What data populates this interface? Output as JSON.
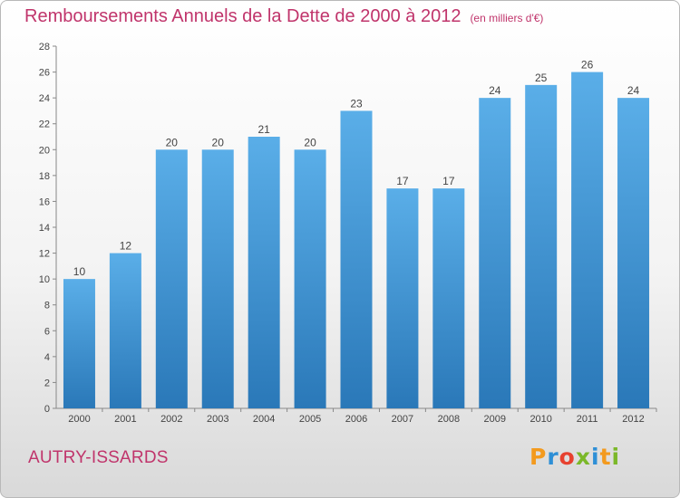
{
  "header": {
    "title": "Remboursements Annuels de la Dette de 2000 à 2012",
    "unit": "(en milliers d'€)"
  },
  "footer": {
    "commune": "AUTRY-ISSARDS",
    "logo_letters": [
      "P",
      "r",
      "o",
      "x",
      "i",
      "t",
      "i"
    ]
  },
  "colors": {
    "title": "#c0346b",
    "bar_top": "#5aaee8",
    "bar_bottom": "#2a78b8"
  },
  "chart_data": {
    "type": "bar",
    "title": "Remboursements Annuels de la Dette de 2000 à 2012",
    "ylabel": "",
    "xlabel": "",
    "categories": [
      "2000",
      "2001",
      "2002",
      "2003",
      "2004",
      "2005",
      "2006",
      "2007",
      "2008",
      "2009",
      "2010",
      "2011",
      "2012"
    ],
    "values": [
      10,
      12,
      20,
      20,
      21,
      20,
      23,
      17,
      17,
      24,
      25,
      26,
      24
    ],
    "ylim": [
      0,
      28
    ],
    "yticks": [
      0,
      2,
      4,
      6,
      8,
      10,
      12,
      14,
      16,
      18,
      20,
      22,
      24,
      26,
      28
    ],
    "grid": false,
    "legend": "none"
  }
}
